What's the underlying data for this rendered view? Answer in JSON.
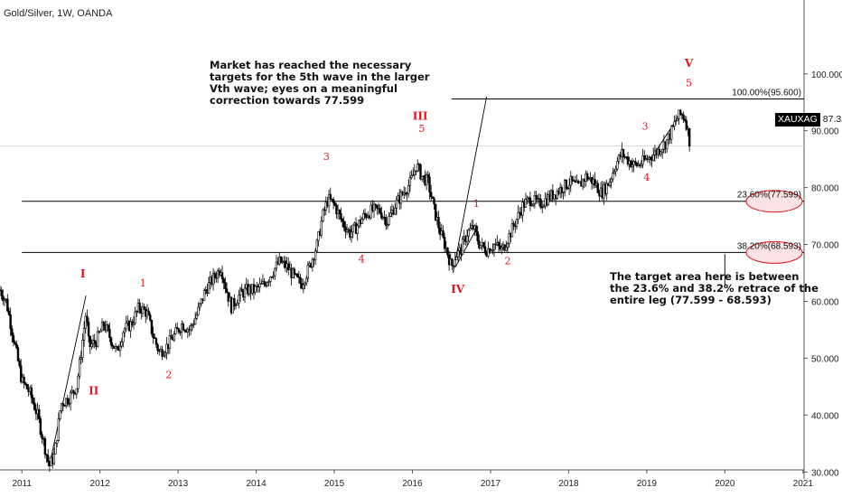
{
  "header": {
    "symbol": "Gold/Silver, 1W, OANDA"
  },
  "last_price": {
    "symbol": "XAUXAG",
    "value": "87.327"
  },
  "notes": {
    "top": [
      "Market has reached the necessary",
      "targets for the 5th wave in the larger",
      "Vth wave; eyes on a meaningful",
      "correction towards 77.599"
    ],
    "bottom": [
      "The target area here is between",
      "the 23.6% and 38.2% retrace of the",
      "entire leg (77.599 - 68.593)"
    ]
  },
  "colors": {
    "candles": "#000000",
    "wave_labels": "#e0161f",
    "fib_lines": "#000000",
    "ellipse": "#e0161f",
    "ellipse_fill": "#fbe3e3",
    "hline_current": "#dddddd"
  },
  "chart_data": {
    "type": "candlestick",
    "title": "Gold/Silver, 1W, OANDA",
    "x_ticks": [
      "2011",
      "2012",
      "2013",
      "2014",
      "2015",
      "2016",
      "2017",
      "2018",
      "2019",
      "2020",
      "2021"
    ],
    "y_ticks": [
      "30.000",
      "40.000",
      "50.000",
      "60.000",
      "70.000",
      "80.000",
      "90.000",
      "100.000"
    ],
    "ylim": [
      27.5,
      106
    ],
    "x_range": [
      2010.72,
      2021.5
    ],
    "series_path": [
      [
        2010.72,
        62
      ],
      [
        2010.8,
        60
      ],
      [
        2010.9,
        53
      ],
      [
        2011.0,
        46
      ],
      [
        2011.1,
        44
      ],
      [
        2011.2,
        40
      ],
      [
        2011.3,
        34
      ],
      [
        2011.35,
        31
      ],
      [
        2011.42,
        33
      ],
      [
        2011.5,
        42
      ],
      [
        2011.6,
        43
      ],
      [
        2011.7,
        45
      ],
      [
        2011.75,
        50
      ],
      [
        2011.82,
        58
      ],
      [
        2011.86,
        52
      ],
      [
        2011.95,
        53
      ],
      [
        2012.05,
        56
      ],
      [
        2012.15,
        53
      ],
      [
        2012.22,
        51
      ],
      [
        2012.3,
        55
      ],
      [
        2012.4,
        56
      ],
      [
        2012.5,
        59
      ],
      [
        2012.6,
        58
      ],
      [
        2012.68,
        54
      ],
      [
        2012.76,
        51
      ],
      [
        2012.85,
        52
      ],
      [
        2012.95,
        54
      ],
      [
        2013.05,
        56
      ],
      [
        2013.15,
        55
      ],
      [
        2013.25,
        58
      ],
      [
        2013.35,
        62
      ],
      [
        2013.45,
        64
      ],
      [
        2013.55,
        66
      ],
      [
        2013.6,
        63
      ],
      [
        2013.68,
        59
      ],
      [
        2013.78,
        61
      ],
      [
        2013.88,
        62
      ],
      [
        2013.98,
        62
      ],
      [
        2014.1,
        63
      ],
      [
        2014.2,
        65
      ],
      [
        2014.3,
        67
      ],
      [
        2014.4,
        66
      ],
      [
        2014.5,
        64
      ],
      [
        2014.58,
        63
      ],
      [
        2014.68,
        66
      ],
      [
        2014.78,
        70
      ],
      [
        2014.85,
        75
      ],
      [
        2014.92,
        78
      ],
      [
        2015.0,
        77
      ],
      [
        2015.1,
        74
      ],
      [
        2015.2,
        72
      ],
      [
        2015.28,
        73
      ],
      [
        2015.38,
        75
      ],
      [
        2015.48,
        76
      ],
      [
        2015.58,
        76
      ],
      [
        2015.68,
        74
      ],
      [
        2015.78,
        77
      ],
      [
        2015.88,
        79
      ],
      [
        2015.98,
        81
      ],
      [
        2016.05,
        84
      ],
      [
        2016.12,
        82
      ],
      [
        2016.2,
        81
      ],
      [
        2016.28,
        76
      ],
      [
        2016.36,
        72
      ],
      [
        2016.44,
        69
      ],
      [
        2016.5,
        66
      ],
      [
        2016.55,
        68
      ],
      [
        2016.62,
        69
      ],
      [
        2016.7,
        72
      ],
      [
        2016.78,
        73
      ],
      [
        2016.86,
        70
      ],
      [
        2016.95,
        69
      ],
      [
        2017.05,
        70
      ],
      [
        2017.15,
        69
      ],
      [
        2017.22,
        71
      ],
      [
        2017.32,
        74
      ],
      [
        2017.42,
        77
      ],
      [
        2017.52,
        78
      ],
      [
        2017.62,
        77
      ],
      [
        2017.72,
        78
      ],
      [
        2017.82,
        79
      ],
      [
        2017.92,
        80
      ],
      [
        2018.02,
        81
      ],
      [
        2018.12,
        80
      ],
      [
        2018.22,
        82
      ],
      [
        2018.32,
        81
      ],
      [
        2018.42,
        79
      ],
      [
        2018.52,
        81
      ],
      [
        2018.6,
        84
      ],
      [
        2018.68,
        86
      ],
      [
        2018.75,
        85
      ],
      [
        2018.83,
        84
      ],
      [
        2018.9,
        84
      ],
      [
        2019.0,
        85
      ],
      [
        2019.1,
        86
      ],
      [
        2019.18,
        87
      ],
      [
        2019.25,
        88
      ],
      [
        2019.32,
        90
      ],
      [
        2019.38,
        92
      ],
      [
        2019.44,
        93
      ],
      [
        2019.5,
        92
      ],
      [
        2019.55,
        88
      ]
    ],
    "fib_levels": [
      {
        "label": "100.00%(95.600)",
        "value": 95.6
      },
      {
        "label": "23.60%(77.599)",
        "value": 77.599
      },
      {
        "label": "38.20%(68.593)",
        "value": 68.593
      }
    ],
    "current_value": 87.327,
    "wave_labels": [
      {
        "text": "I",
        "x": 2011.78,
        "y": 64.2,
        "style": "roman"
      },
      {
        "text": "II",
        "x": 2011.92,
        "y": 43.6,
        "style": "roman"
      },
      {
        "text": "1",
        "x": 2012.55,
        "y": 62.6,
        "style": "arabic"
      },
      {
        "text": "2",
        "x": 2012.88,
        "y": 46.5,
        "style": "arabic"
      },
      {
        "text": "3",
        "x": 2014.9,
        "y": 84.9,
        "style": "arabic"
      },
      {
        "text": "4",
        "x": 2015.35,
        "y": 66.8,
        "style": "arabic"
      },
      {
        "text": "III",
        "x": 2016.1,
        "y": 91.9,
        "style": "roman"
      },
      {
        "text": "5",
        "x": 2016.12,
        "y": 89.8,
        "style": "arabic"
      },
      {
        "text": "IV",
        "x": 2016.58,
        "y": 61.5,
        "style": "roman"
      },
      {
        "text": "1",
        "x": 2016.82,
        "y": 76.6,
        "style": "arabic"
      },
      {
        "text": "2",
        "x": 2017.22,
        "y": 66.5,
        "style": "arabic"
      },
      {
        "text": "3",
        "x": 2018.98,
        "y": 90.2,
        "style": "arabic"
      },
      {
        "text": "4",
        "x": 2019.0,
        "y": 81.2,
        "style": "arabic"
      },
      {
        "text": "V",
        "x": 2019.54,
        "y": 101.2,
        "style": "roman"
      },
      {
        "text": "5",
        "x": 2019.54,
        "y": 97.8,
        "style": "arabic"
      }
    ],
    "trend_lines": [
      {
        "from": [
          2011.35,
          31
        ],
        "to": [
          2011.82,
          61
        ]
      },
      {
        "from": [
          2016.52,
          65
        ],
        "to": [
          2016.95,
          96
        ]
      },
      {
        "from": [
          2016.55,
          66
        ],
        "to": [
          2016.83,
          73
        ]
      },
      {
        "from": [
          2019.05,
          85
        ],
        "to": [
          2019.43,
          93
        ]
      },
      {
        "from": [
          2020.0,
          68.3
        ],
        "to": [
          2020.0,
          62.5
        ]
      }
    ],
    "ellipses": [
      2,
      3
    ],
    "grid": false
  }
}
